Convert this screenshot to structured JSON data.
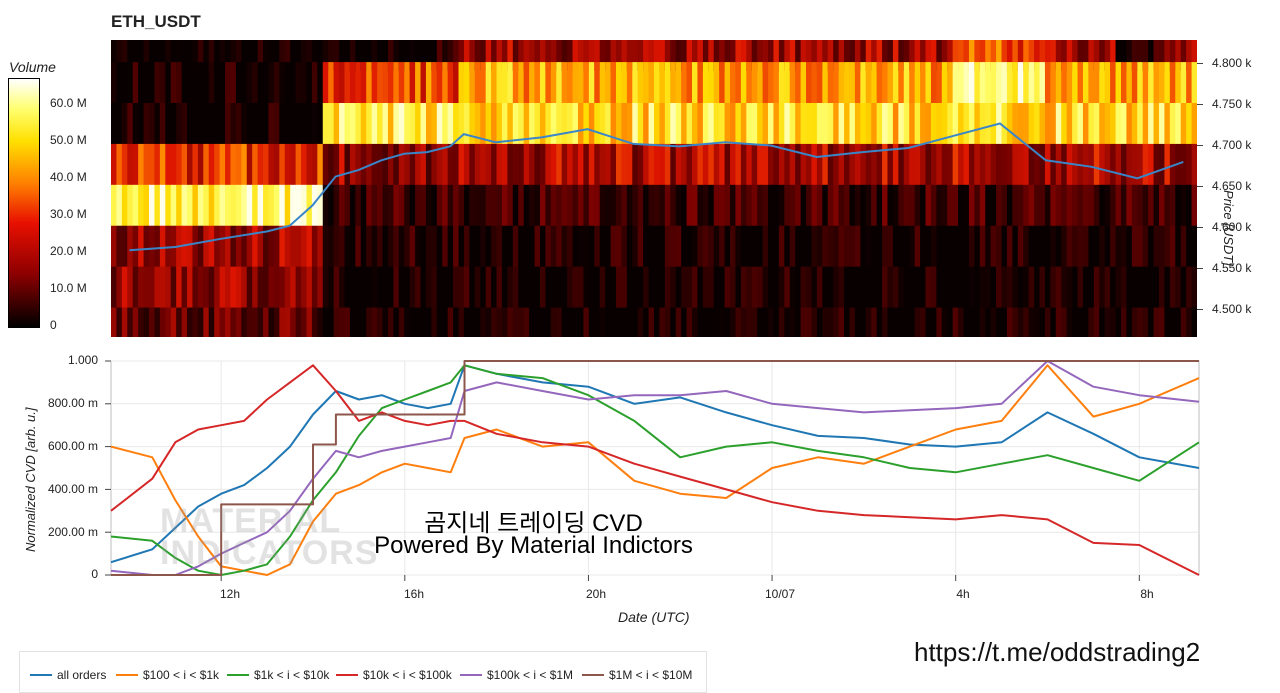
{
  "title": "ETH_USDT",
  "colorbar": {
    "title": "Volume",
    "ticks": [
      "60.0 M",
      "50.0 M",
      "40.0 M",
      "30.0 M",
      "20.0 M",
      "10.0 M",
      "0"
    ]
  },
  "heatmap": {
    "price_ticks": [
      "4.800 k",
      "4.750 k",
      "4.700 k",
      "4.650 k",
      "4.600 k",
      "4.550 k",
      "4.500 k"
    ],
    "price_axis_label": "Price [USDT]"
  },
  "chart_data": [
    {
      "type": "heatmap",
      "title": "ETH_USDT",
      "x": "Date (UTC) 10:00 to 09:00 next day",
      "ylabel": "Price [USDT]",
      "ylim": [
        4464,
        4827
      ],
      "price_bands": [
        4475,
        4525,
        4575,
        4625,
        4675,
        4725,
        4775,
        4815
      ],
      "color_scale_label": "Volume",
      "color_range": [
        0,
        65000000
      ],
      "price_line": {
        "x_hours": [
          10.0,
          11.0,
          12.0,
          13.0,
          13.5,
          14.0,
          14.5,
          15.0,
          15.5,
          16.0,
          16.5,
          17.0,
          17.3,
          18.0,
          19.0,
          20.0,
          21.0,
          22.0,
          23.0,
          24.0,
          25.0,
          26.0,
          27.0,
          28.0,
          29.0,
          30.0,
          31.0,
          32.0,
          33.0
        ],
        "values": [
          4570,
          4574,
          4584,
          4593,
          4600,
          4625,
          4660,
          4668,
          4680,
          4688,
          4690,
          4697,
          4712,
          4702,
          4708,
          4718,
          4700,
          4697,
          4702,
          4698,
          4684,
          4690,
          4695,
          4710,
          4725,
          4680,
          4672,
          4658,
          4678
        ]
      }
    },
    {
      "type": "line",
      "xlabel": "Date (UTC)",
      "ylabel": "Normalized CVD [arb. u.]",
      "x_ticks": [
        "12h",
        "16h",
        "20h",
        "10/07",
        "4h",
        "8h"
      ],
      "y_ticks": [
        "1.000",
        "800.00 m",
        "600.00 m",
        "400.00 m",
        "200.00 m",
        "0"
      ],
      "ylim": [
        0,
        1
      ],
      "xlim_hours": [
        9.6,
        33.3
      ],
      "x_hours": [
        9.6,
        10.5,
        11.0,
        11.5,
        12.0,
        12.5,
        13.0,
        13.5,
        14.0,
        14.5,
        15.0,
        15.5,
        16.0,
        16.5,
        17.0,
        17.3,
        18.0,
        19.0,
        20.0,
        21.0,
        22.0,
        23.0,
        24.0,
        25.0,
        26.0,
        27.0,
        28.0,
        29.0,
        30.0,
        31.0,
        32.0,
        33.3
      ],
      "series": [
        {
          "name": "all orders",
          "values": [
            0.06,
            0.12,
            0.22,
            0.32,
            0.38,
            0.42,
            0.5,
            0.6,
            0.75,
            0.86,
            0.82,
            0.84,
            0.8,
            0.78,
            0.8,
            0.98,
            0.94,
            0.9,
            0.88,
            0.8,
            0.83,
            0.76,
            0.7,
            0.65,
            0.64,
            0.61,
            0.6,
            0.62,
            0.76,
            0.66,
            0.55,
            0.5
          ]
        },
        {
          "name": "$100 < i < $1k",
          "values": [
            0.6,
            0.55,
            0.35,
            0.18,
            0.04,
            0.02,
            0.0,
            0.05,
            0.25,
            0.38,
            0.42,
            0.48,
            0.52,
            0.5,
            0.48,
            0.64,
            0.68,
            0.6,
            0.62,
            0.44,
            0.38,
            0.36,
            0.5,
            0.55,
            0.52,
            0.6,
            0.68,
            0.72,
            0.98,
            0.74,
            0.8,
            0.92
          ]
        },
        {
          "name": "$1k < i < $10k",
          "values": [
            0.18,
            0.16,
            0.08,
            0.02,
            0.0,
            0.02,
            0.05,
            0.18,
            0.35,
            0.48,
            0.65,
            0.78,
            0.82,
            0.86,
            0.9,
            0.98,
            0.94,
            0.92,
            0.84,
            0.72,
            0.55,
            0.6,
            0.62,
            0.58,
            0.55,
            0.5,
            0.48,
            0.52,
            0.56,
            0.5,
            0.44,
            0.62
          ]
        },
        {
          "name": "$10k < i < $100k",
          "values": [
            0.3,
            0.45,
            0.62,
            0.68,
            0.7,
            0.72,
            0.82,
            0.9,
            0.98,
            0.86,
            0.72,
            0.76,
            0.72,
            0.7,
            0.72,
            0.72,
            0.66,
            0.62,
            0.6,
            0.52,
            0.46,
            0.4,
            0.34,
            0.3,
            0.28,
            0.27,
            0.26,
            0.28,
            0.26,
            0.15,
            0.14,
            0.0
          ]
        },
        {
          "name": "$100k < i < $1M",
          "values": [
            0.02,
            0.0,
            0.0,
            0.04,
            0.1,
            0.15,
            0.2,
            0.3,
            0.45,
            0.58,
            0.55,
            0.58,
            0.6,
            0.62,
            0.64,
            0.86,
            0.9,
            0.86,
            0.82,
            0.84,
            0.84,
            0.86,
            0.8,
            0.78,
            0.76,
            0.77,
            0.78,
            0.8,
            1.0,
            0.88,
            0.84,
            0.81
          ]
        },
        {
          "name": "$1M < i < $10M",
          "values": [
            0.0,
            0.0,
            0.0,
            0.0,
            0.33,
            0.33,
            0.33,
            0.33,
            0.61,
            0.75,
            0.75,
            0.75,
            0.75,
            0.75,
            0.75,
            1.0,
            1.0,
            1.0,
            1.0,
            1.0,
            1.0,
            1.0,
            1.0,
            1.0,
            1.0,
            1.0,
            1.0,
            1.0,
            1.0,
            1.0,
            1.0,
            1.0
          ]
        }
      ]
    }
  ],
  "colors": {
    "all orders": "#1f77b4",
    "$100 < i < $1k": "#ff7f0e",
    "$1k < i < $10k": "#2ca02c",
    "$10k < i < $100k": "#d62728",
    "$100k < i < $1M": "#9467bd",
    "$1M < i < $10M": "#8c564b",
    "price_line": "#3a86c8"
  },
  "overlay": {
    "line1": "곰지네 트레이딩 CVD",
    "line2": "Powered By Material Indictors"
  },
  "watermark": {
    "line1": "MATERIAL",
    "line2": "INDICATORS"
  },
  "link": "https://t.me/oddstrading2"
}
